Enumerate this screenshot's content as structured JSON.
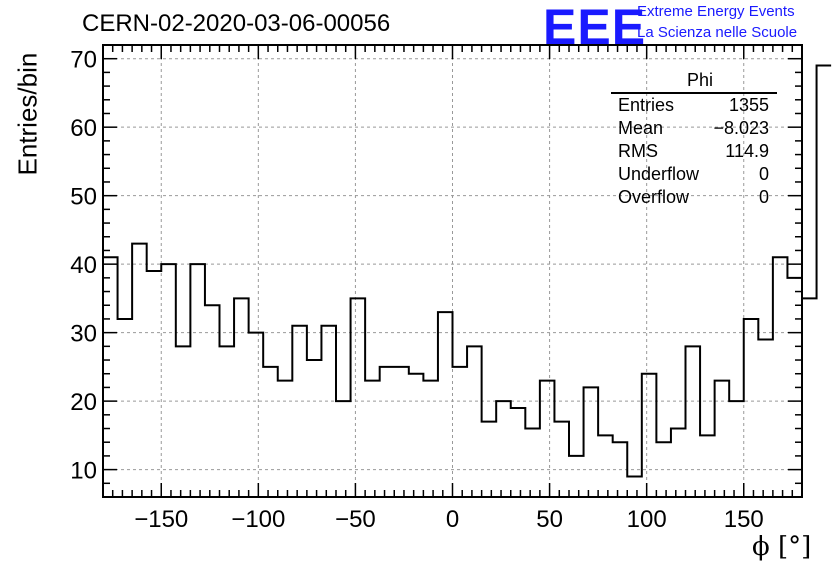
{
  "header": {
    "title": "CERN-02-2020-03-06-00056",
    "logo": "EEE",
    "logo_line1": "Extreme Energy Events",
    "logo_line2": "La Scienza nelle Scuole"
  },
  "stats_box": {
    "title": "Phi",
    "rows": [
      {
        "label": "Entries",
        "value": "1355"
      },
      {
        "label": "Mean",
        "value": "−8.023"
      },
      {
        "label": "RMS",
        "value": "114.9"
      },
      {
        "label": "Underflow",
        "value": "0"
      },
      {
        "label": "Overflow",
        "value": "0"
      }
    ]
  },
  "colors": {
    "logo": "#1a1aff",
    "line": "#000000",
    "grid": "#999999"
  },
  "chart_data": {
    "type": "bar",
    "histogram": true,
    "title": "CERN-02-2020-03-06-00056",
    "xlabel": "ϕ [°]",
    "ylabel": "Entries/bin",
    "xlim": [
      -180,
      180
    ],
    "ylim": [
      6,
      72
    ],
    "grid": true,
    "x_ticks": [
      -150,
      -100,
      -50,
      0,
      50,
      100,
      150
    ],
    "x_tick_labels": [
      "−150",
      "−100",
      "−50",
      "0",
      "50",
      "100",
      "150"
    ],
    "y_ticks": [
      10,
      20,
      30,
      40,
      50,
      60,
      70
    ],
    "y_tick_labels": [
      "10",
      "20",
      "30",
      "40",
      "50",
      "60",
      "70"
    ],
    "bin_edges_start": -180,
    "bin_width": 7.5,
    "values": [
      41,
      32,
      43,
      39,
      40,
      28,
      40,
      34,
      28,
      35,
      30,
      25,
      23,
      31,
      26,
      31,
      20,
      35,
      23,
      25,
      25,
      24,
      23,
      33,
      25,
      28,
      17,
      20,
      19,
      16,
      23,
      17,
      12,
      22,
      15,
      14,
      9,
      24,
      14,
      16,
      28,
      15,
      23,
      20,
      32,
      29,
      41,
      38,
      35,
      69
    ]
  }
}
